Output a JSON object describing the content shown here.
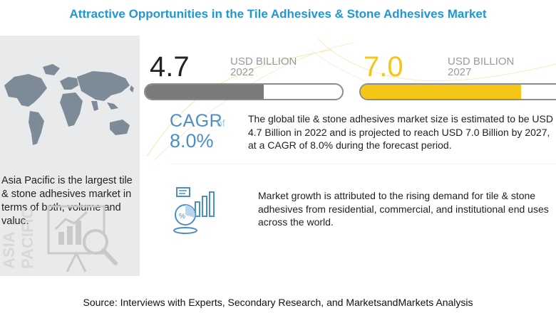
{
  "title": "Attractive Opportunities in the Tile Adhesives & Stone Adhesives Market",
  "left_panel": {
    "region_text": "Asia Pacific is the largest tile & stone adhesives market in terms of both, volume and value.",
    "watermark": [
      "ASIA",
      "PACIFIC"
    ]
  },
  "metrics": [
    {
      "value": "4.7",
      "unit": "USD BILLION",
      "year": "2022",
      "fill_fraction": 0.6,
      "color": "#7a7a7a"
    },
    {
      "value": "7.0",
      "unit": "USD BILLION",
      "year": "2027",
      "fill_fraction": 0.82,
      "color": "#f5c518"
    }
  ],
  "cagr": {
    "label": "CAGR",
    "of": "of",
    "value": "8.0%"
  },
  "market_size_text": "The global tile & stone adhesives market size is estimated to be USD 4.7 Billion in 2022 and is projected to reach USD 7.0 Billion by 2027, at a CAGR of 8.0% during the forecast period.",
  "growth_text": "Market growth is attributed to the rising demand for tile & stone adhesives from residential, commercial, and institutional end uses across the world.",
  "source": "Source: Interviews with Experts, Secondary Research, and MarketsandMarkets Analysis",
  "icons": [
    "world-map",
    "analytics-magnifier-icon",
    "growth-chart-icon"
  ],
  "colors": {
    "title": "#1f97d4",
    "cagr": "#4a8fc7",
    "panel_bg": "#e9eaeb"
  }
}
